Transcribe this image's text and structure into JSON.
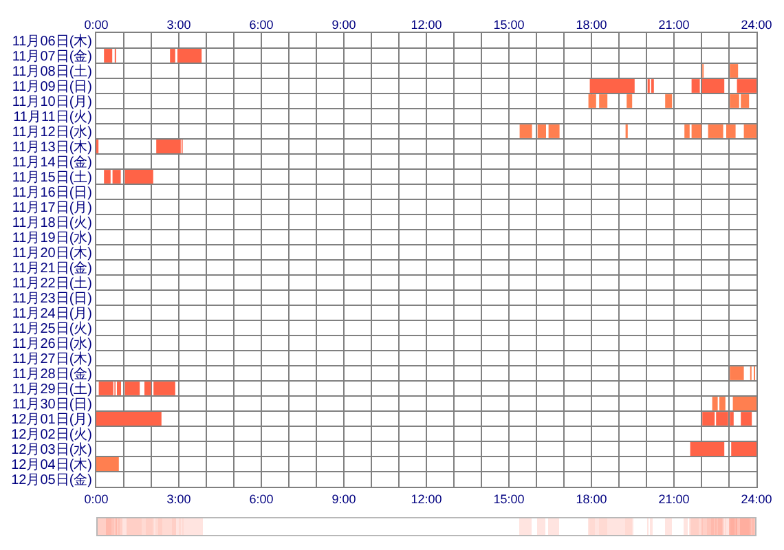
{
  "chart_data": {
    "type": "bar",
    "orientation": "horizontal",
    "grid": true,
    "categories": [
      "11月06日(木)",
      "11月07日(金)",
      "11月08日(土)",
      "11月09日(日)",
      "11月10日(月)",
      "11月11日(火)",
      "11月12日(水)",
      "11月13日(木)",
      "11月14日(金)",
      "11月15日(土)",
      "11月16日(日)",
      "11月17日(月)",
      "11月18日(火)",
      "11月19日(水)",
      "11月20日(木)",
      "11月21日(金)",
      "11月22日(土)",
      "11月23日(日)",
      "11月24日(月)",
      "11月25日(火)",
      "11月26日(水)",
      "11月27日(木)",
      "11月28日(金)",
      "11月29日(土)",
      "11月30日(日)",
      "12月01日(月)",
      "12月02日(火)",
      "12月03日(水)",
      "12月04日(木)",
      "12月05日(金)"
    ],
    "xlim": [
      0,
      24
    ],
    "xticks": [
      {
        "value": 0,
        "label": "0:00"
      },
      {
        "value": 1,
        "label": null
      },
      {
        "value": 2,
        "label": null
      },
      {
        "value": 3,
        "label": "3:00"
      },
      {
        "value": 4,
        "label": null
      },
      {
        "value": 5,
        "label": null
      },
      {
        "value": 6,
        "label": "6:00"
      },
      {
        "value": 7,
        "label": null
      },
      {
        "value": 8,
        "label": null
      },
      {
        "value": 9,
        "label": "9:00"
      },
      {
        "value": 10,
        "label": null
      },
      {
        "value": 11,
        "label": null
      },
      {
        "value": 12,
        "label": "12:00"
      },
      {
        "value": 13,
        "label": null
      },
      {
        "value": 14,
        "label": null
      },
      {
        "value": 15,
        "label": "15:00"
      },
      {
        "value": 16,
        "label": null
      },
      {
        "value": 17,
        "label": null
      },
      {
        "value": 18,
        "label": "18:00"
      },
      {
        "value": 19,
        "label": null
      },
      {
        "value": 20,
        "label": null
      },
      {
        "value": 21,
        "label": "21:00"
      },
      {
        "value": 22,
        "label": null
      },
      {
        "value": 23,
        "label": null
      },
      {
        "value": 24,
        "label": "24:00"
      }
    ],
    "x2lim": [
      0,
      24
    ],
    "x2ticks": [
      {
        "value": 0,
        "label": "0:00"
      },
      {
        "value": 3,
        "label": "3:00"
      },
      {
        "value": 6,
        "label": "6:00"
      },
      {
        "value": 9,
        "label": "9:00"
      },
      {
        "value": 12,
        "label": "12:00"
      },
      {
        "value": 15,
        "label": "15:00"
      },
      {
        "value": 18,
        "label": "18:00"
      },
      {
        "value": 21,
        "label": "21:00"
      },
      {
        "value": 24,
        "label": "24:00"
      }
    ],
    "series": [
      {
        "base": [
          null,
          0.28,
          22.03,
          17.94,
          17.89,
          null,
          15.39,
          0,
          null,
          0.28,
          null,
          null,
          null,
          null,
          null,
          null,
          null,
          null,
          null,
          null,
          null,
          null,
          23.03,
          0.09,
          22.39,
          0,
          null,
          21.59,
          0,
          null
        ],
        "values": [
          null,
          0.3,
          0.05,
          1.63,
          0.28,
          null,
          0.45,
          0.08,
          null,
          0.24,
          null,
          null,
          null,
          null,
          null,
          null,
          null,
          null,
          null,
          null,
          null,
          null,
          0.51,
          0.53,
          0.2,
          2.37,
          null,
          1.24,
          0.82,
          null
        ],
        "colors": [
          null,
          "#ff6347",
          "#ff7f50",
          "#ff6347",
          "#ff7f50",
          null,
          "#ff7f50",
          "#ff6347",
          null,
          "#ff6347",
          null,
          null,
          null,
          null,
          null,
          null,
          null,
          null,
          null,
          null,
          null,
          null,
          "#ff7f50",
          "#ff6347",
          "#ff7f50",
          "#ff6347",
          null,
          "#ff6347",
          "#ff7f50",
          null
        ]
      },
      {
        "base": [
          null,
          0.67,
          23.03,
          20.04,
          18.28,
          null,
          16.04,
          2.18,
          null,
          0.59,
          null,
          null,
          null,
          null,
          null,
          null,
          null,
          null,
          null,
          null,
          null,
          null,
          23.77,
          0.66,
          22.65,
          22.03,
          null,
          23.08,
          null,
          null
        ],
        "values": [
          null,
          0.05,
          0.3,
          0.08,
          0.3,
          null,
          0.31,
          0.89,
          null,
          0.3,
          null,
          null,
          null,
          null,
          null,
          null,
          null,
          null,
          null,
          null,
          null,
          null,
          0.05,
          0.04,
          0.22,
          0.45,
          null,
          0.92,
          null,
          null
        ],
        "colors": [
          null,
          "#ff6347",
          "#ff7f50",
          "#ff6347",
          "#ff7f50",
          null,
          "#ff7f50",
          "#ff6347",
          null,
          "#ff6347",
          null,
          null,
          null,
          null,
          null,
          null,
          null,
          null,
          null,
          null,
          null,
          null,
          "#ff7f50",
          "#ff6347",
          "#ff7f50",
          "#ff6347",
          null,
          "#ff6347",
          null,
          null
        ]
      },
      {
        "base": [
          null,
          2.68,
          null,
          20.17,
          19.28,
          null,
          16.44,
          3.1,
          null,
          1.04,
          null,
          null,
          null,
          null,
          null,
          null,
          null,
          null,
          null,
          null,
          null,
          null,
          23.9,
          0.75,
          23.14,
          22.53,
          null,
          null,
          null,
          null
        ],
        "values": [
          null,
          0.19,
          null,
          0.1,
          0.2,
          null,
          0.4,
          0.04,
          null,
          1.03,
          null,
          null,
          null,
          null,
          null,
          null,
          null,
          null,
          null,
          null,
          null,
          null,
          0.05,
          0.15,
          0.86,
          0.44,
          null,
          null,
          null,
          null
        ],
        "colors": [
          null,
          "#ff6347",
          null,
          "#ff6347",
          "#ff7f50",
          null,
          "#ff7f50",
          "#ff6347",
          null,
          "#ff6347",
          null,
          null,
          null,
          null,
          null,
          null,
          null,
          null,
          null,
          null,
          null,
          null,
          "#ff7f50",
          "#ff6347",
          "#ff7f50",
          "#ff6347",
          null,
          null,
          null,
          null
        ]
      },
      {
        "base": [
          null,
          2.95,
          null,
          21.64,
          20.68,
          null,
          19.24,
          null,
          null,
          null,
          null,
          null,
          null,
          null,
          null,
          null,
          null,
          null,
          null,
          null,
          null,
          null,
          null,
          1.04,
          null,
          23.03,
          null,
          null,
          null,
          null
        ],
        "values": [
          null,
          0.88,
          null,
          0.3,
          0.25,
          null,
          0.08,
          null,
          null,
          null,
          null,
          null,
          null,
          null,
          null,
          null,
          null,
          null,
          null,
          null,
          null,
          null,
          null,
          0.54,
          null,
          0.14,
          null,
          null,
          null,
          null
        ],
        "colors": [
          null,
          "#ff6347",
          null,
          "#ff6347",
          "#ff7f50",
          null,
          "#ff7f50",
          null,
          null,
          null,
          null,
          null,
          null,
          null,
          null,
          null,
          null,
          null,
          null,
          null,
          null,
          null,
          null,
          "#ff6347",
          null,
          "#ff6347",
          null,
          null,
          null,
          null
        ]
      },
      {
        "base": [
          null,
          null,
          null,
          22.02,
          23.03,
          null,
          21.38,
          null,
          null,
          null,
          null,
          null,
          null,
          null,
          null,
          null,
          null,
          null,
          null,
          null,
          null,
          null,
          null,
          1.75,
          null,
          23.43,
          null,
          null,
          null,
          null
        ],
        "values": [
          null,
          null,
          null,
          0.81,
          0.34,
          null,
          0.19,
          null,
          null,
          null,
          null,
          null,
          null,
          null,
          null,
          null,
          null,
          null,
          null,
          null,
          null,
          null,
          null,
          0.24,
          null,
          0.4,
          null,
          null,
          null,
          null
        ],
        "colors": [
          null,
          null,
          null,
          "#ff6347",
          "#ff7f50",
          null,
          "#ff7f50",
          null,
          null,
          null,
          null,
          null,
          null,
          null,
          null,
          null,
          null,
          null,
          null,
          null,
          null,
          null,
          null,
          "#ff6347",
          null,
          "#ff6347",
          null,
          null,
          null,
          null
        ]
      },
      {
        "base": [
          null,
          null,
          null,
          23.29,
          23.43,
          null,
          21.64,
          null,
          null,
          null,
          null,
          null,
          null,
          null,
          null,
          null,
          null,
          null,
          null,
          null,
          null,
          null,
          null,
          2.08,
          null,
          null,
          null,
          null,
          null,
          null
        ],
        "values": [
          null,
          null,
          null,
          0.71,
          0.3,
          null,
          0.36,
          null,
          null,
          null,
          null,
          null,
          null,
          null,
          null,
          null,
          null,
          null,
          null,
          null,
          null,
          null,
          null,
          0.79,
          null,
          null,
          null,
          null,
          null,
          null
        ],
        "colors": [
          null,
          null,
          null,
          "#ff6347",
          "#ff7f50",
          null,
          "#ff7f50",
          null,
          null,
          null,
          null,
          null,
          null,
          null,
          null,
          null,
          null,
          null,
          null,
          null,
          null,
          null,
          null,
          "#ff6347",
          null,
          null,
          null,
          null,
          null,
          null
        ]
      },
      {
        "base": [
          null,
          null,
          null,
          null,
          null,
          null,
          22.24,
          null,
          null,
          null,
          null,
          null,
          null,
          null,
          null,
          null,
          null,
          null,
          null,
          null,
          null,
          null,
          null,
          null,
          null,
          null,
          null,
          null,
          null,
          null
        ],
        "values": [
          null,
          null,
          null,
          null,
          null,
          null,
          0.55,
          null,
          null,
          null,
          null,
          null,
          null,
          null,
          null,
          null,
          null,
          null,
          null,
          null,
          null,
          null,
          null,
          null,
          null,
          null,
          null,
          null,
          null,
          null
        ],
        "colors": [
          null,
          null,
          null,
          null,
          null,
          null,
          "#ff7f50",
          null,
          null,
          null,
          null,
          null,
          null,
          null,
          null,
          null,
          null,
          null,
          null,
          null,
          null,
          null,
          null,
          null,
          null,
          null,
          null,
          null,
          null,
          null
        ]
      },
      {
        "base": [
          null,
          null,
          null,
          null,
          null,
          null,
          22.9,
          null,
          null,
          null,
          null,
          null,
          null,
          null,
          null,
          null,
          null,
          null,
          null,
          null,
          null,
          null,
          null,
          null,
          null,
          null,
          null,
          null,
          null,
          null
        ],
        "values": [
          null,
          null,
          null,
          null,
          null,
          null,
          0.34,
          null,
          null,
          null,
          null,
          null,
          null,
          null,
          null,
          null,
          null,
          null,
          null,
          null,
          null,
          null,
          null,
          null,
          null,
          null,
          null,
          null,
          null,
          null
        ],
        "colors": [
          null,
          null,
          null,
          null,
          null,
          null,
          "#ff7f50",
          null,
          null,
          null,
          null,
          null,
          null,
          null,
          null,
          null,
          null,
          null,
          null,
          null,
          null,
          null,
          null,
          null,
          null,
          null,
          null,
          null,
          null,
          null
        ]
      },
      {
        "base": [
          null,
          null,
          null,
          null,
          null,
          null,
          23.54,
          null,
          null,
          null,
          null,
          null,
          null,
          null,
          null,
          null,
          null,
          null,
          null,
          null,
          null,
          null,
          null,
          null,
          null,
          null,
          null,
          null,
          null,
          null
        ],
        "values": [
          null,
          null,
          null,
          null,
          null,
          null,
          0.46,
          null,
          null,
          null,
          null,
          null,
          null,
          null,
          null,
          null,
          null,
          null,
          null,
          null,
          null,
          null,
          null,
          null,
          null,
          null,
          null,
          null,
          null,
          null
        ],
        "colors": [
          null,
          null,
          null,
          null,
          null,
          null,
          "#ff7f50",
          null,
          null,
          null,
          null,
          null,
          null,
          null,
          null,
          null,
          null,
          null,
          null,
          null,
          null,
          null,
          null,
          null,
          null,
          null,
          null,
          null,
          null,
          null
        ]
      }
    ]
  }
}
